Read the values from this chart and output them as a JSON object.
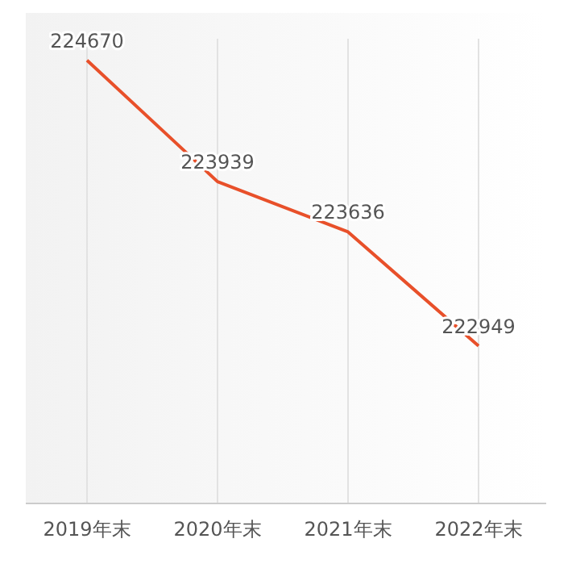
{
  "chart_data": {
    "type": "line",
    "categories": [
      "2019年末",
      "2020年末",
      "2021年末",
      "2022年末"
    ],
    "series": [
      {
        "color": "#e8502a",
        "values": [
          224670,
          223939,
          223636,
          222949
        ]
      }
    ],
    "ylim": [
      222000,
      224800
    ],
    "tick_labels": "x",
    "data_labels": true,
    "grid": "x",
    "marker": "none",
    "line_style": "solid"
  }
}
